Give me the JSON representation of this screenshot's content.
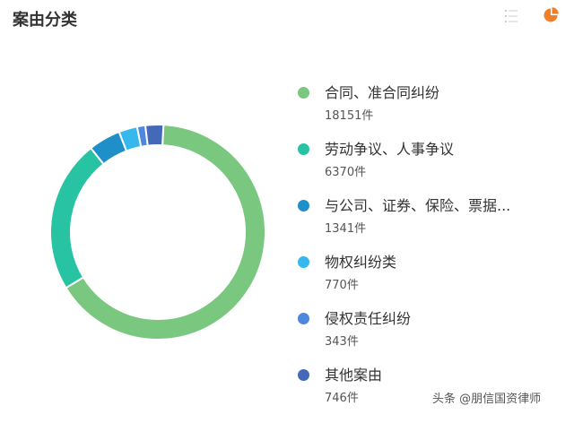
{
  "header": {
    "title": "案由分类",
    "list_icon": "list-icon",
    "pie_icon": "pie-chart-icon",
    "pie_icon_color": "#f07f27"
  },
  "chart_data": {
    "type": "pie",
    "donut": true,
    "unit": "件",
    "legend_position": "right",
    "categories": [
      "合同、准合同纠纷",
      "劳动争议、人事争议",
      "与公司、证券、保险、票据...",
      "物权纠纷类",
      "侵权责任纠纷",
      "其他案由"
    ],
    "values": [
      18151,
      6370,
      1341,
      770,
      343,
      746
    ],
    "counts": [
      "18151件",
      "6370件",
      "1341件",
      "770件",
      "343件",
      "746件"
    ],
    "colors": [
      "#7ac77f",
      "#27c3a3",
      "#1e8fc8",
      "#36b8ef",
      "#4d87de",
      "#4469b8"
    ]
  },
  "watermark": "头条 @朋信国资律师"
}
